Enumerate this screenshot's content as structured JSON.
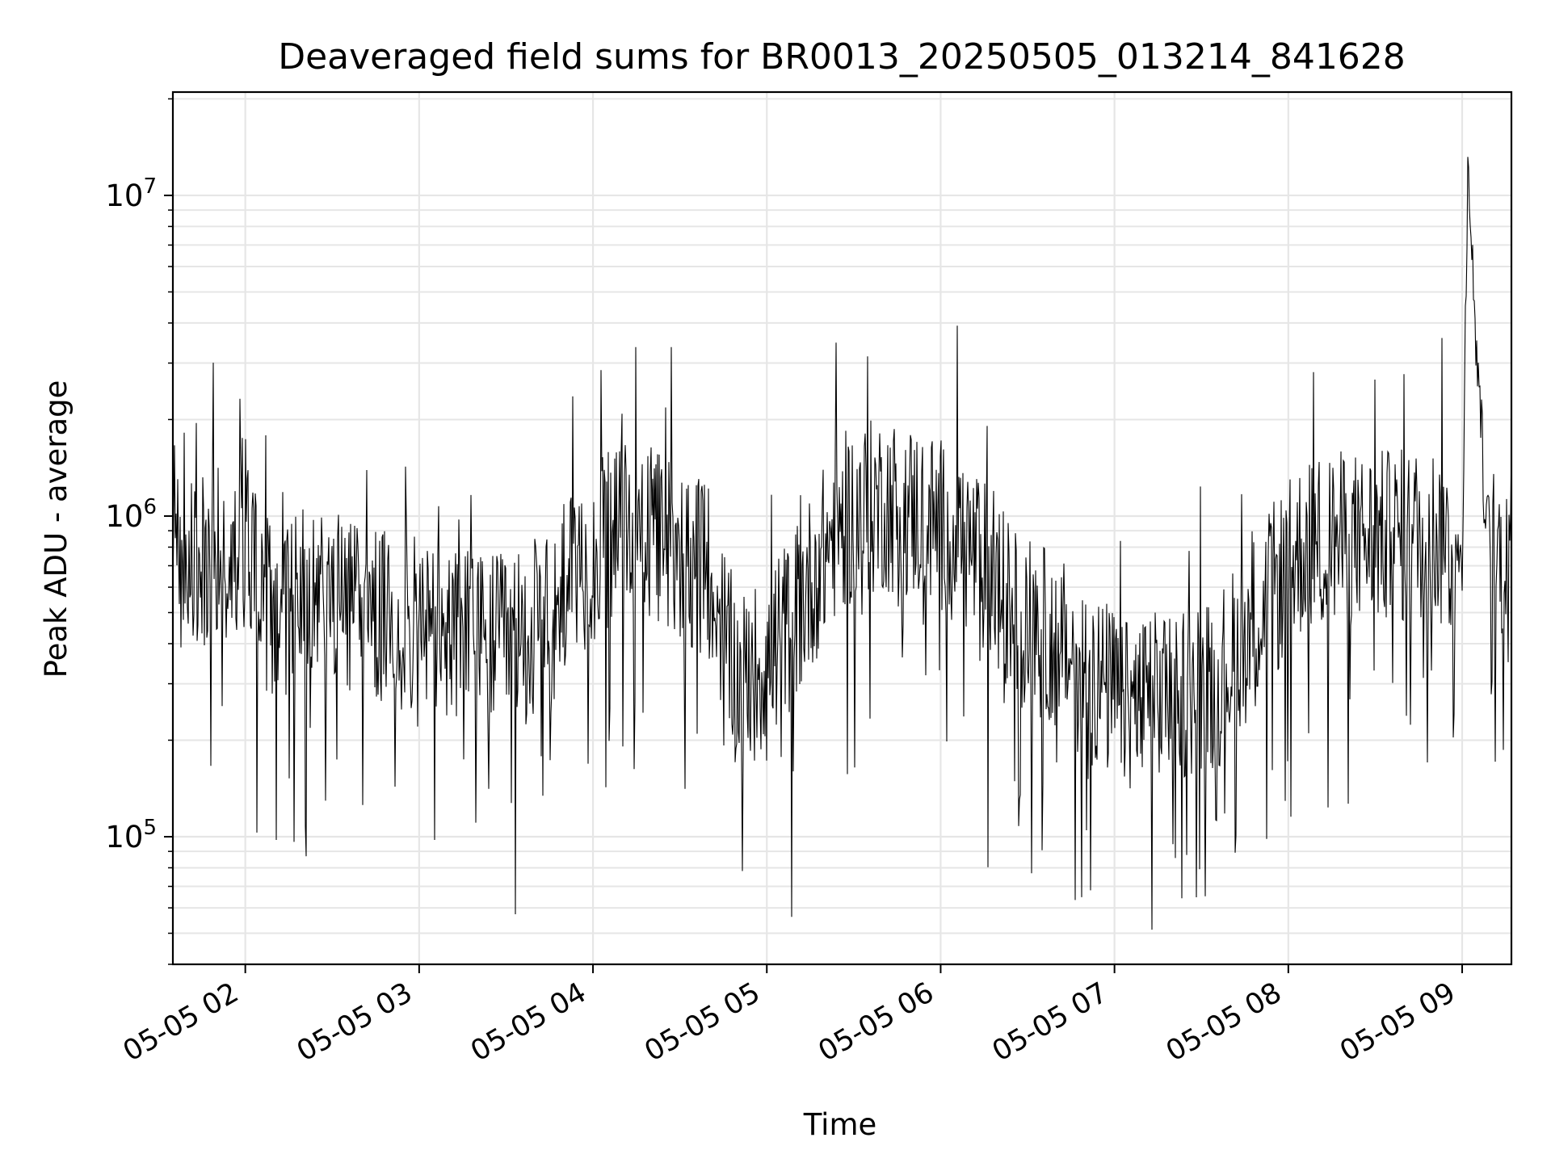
{
  "chart_data": {
    "type": "line",
    "title": "Deaveraged field sums for BR0013_20250505_013214_841628",
    "xlabel": "Time",
    "ylabel": "Peak ADU - average",
    "x_tick_labels": [
      "05-05 02",
      "05-05 03",
      "05-05 04",
      "05-05 05",
      "05-05 06",
      "05-05 07",
      "05-05 08",
      "05-05 09"
    ],
    "x_tick_times": [
      "2025-05-05 02:00",
      "2025-05-05 03:00",
      "2025-05-05 04:00",
      "2025-05-05 05:00",
      "2025-05-05 06:00",
      "2025-05-05 07:00",
      "2025-05-05 08:00",
      "2025-05-05 09:00"
    ],
    "x_range": [
      "2025-05-05 01:35",
      "2025-05-05 09:17"
    ],
    "y_scale": "log",
    "y_ticks": [
      {
        "base": "10",
        "exp": "5",
        "value": 100000
      },
      {
        "base": "10",
        "exp": "6",
        "value": 1000000
      },
      {
        "base": "10",
        "exp": "7",
        "value": 10000000
      }
    ],
    "ylim": [
      40000,
      21000000
    ],
    "grid": true,
    "line_color": "#000000",
    "series": [
      {
        "points": [
          [
            "2025-05-05 01:35",
            900000
          ],
          [
            "2025-05-05 01:45",
            700000
          ],
          [
            "2025-05-05 02:00",
            850000
          ],
          [
            "2025-05-05 02:10",
            450000
          ],
          [
            "2025-05-05 02:20",
            650000
          ],
          [
            "2025-05-05 02:30",
            550000
          ],
          [
            "2025-05-05 02:45",
            480000
          ],
          [
            "2025-05-05 03:00",
            450000
          ],
          [
            "2025-05-05 03:15",
            420000
          ],
          [
            "2025-05-05 03:30",
            400000
          ],
          [
            "2025-05-05 03:45",
            450000
          ],
          [
            "2025-05-05 03:55",
            700000
          ],
          [
            "2025-05-05 04:10",
            900000
          ],
          [
            "2025-05-05 04:25",
            850000
          ],
          [
            "2025-05-05 04:40",
            650000
          ],
          [
            "2025-05-05 04:50",
            300000
          ],
          [
            "2025-05-05 05:00",
            350000
          ],
          [
            "2025-05-05 05:10",
            500000
          ],
          [
            "2025-05-05 05:25",
            950000
          ],
          [
            "2025-05-05 05:40",
            1100000
          ],
          [
            "2025-05-05 05:55",
            1000000
          ],
          [
            "2025-05-05 06:10",
            800000
          ],
          [
            "2025-05-05 06:25",
            500000
          ],
          [
            "2025-05-05 06:40",
            400000
          ],
          [
            "2025-05-05 06:55",
            300000
          ],
          [
            "2025-05-05 07:05",
            250000
          ],
          [
            "2025-05-05 07:20",
            280000
          ],
          [
            "2025-05-05 07:35",
            300000
          ],
          [
            "2025-05-05 07:50",
            500000
          ],
          [
            "2025-05-05 08:05",
            800000
          ],
          [
            "2025-05-05 08:20",
            850000
          ],
          [
            "2025-05-05 08:35",
            850000
          ],
          [
            "2025-05-05 08:50",
            900000
          ],
          [
            "2025-05-05 09:00",
            700000
          ],
          [
            "2025-05-05 09:02",
            15000000
          ],
          [
            "2025-05-05 09:04",
            4500000
          ],
          [
            "2025-05-05 09:06",
            2500000
          ],
          [
            "2025-05-05 09:08",
            1000000
          ],
          [
            "2025-05-05 09:12",
            700000
          ],
          [
            "2025-05-05 09:17",
            1000000
          ]
        ]
      }
    ]
  }
}
